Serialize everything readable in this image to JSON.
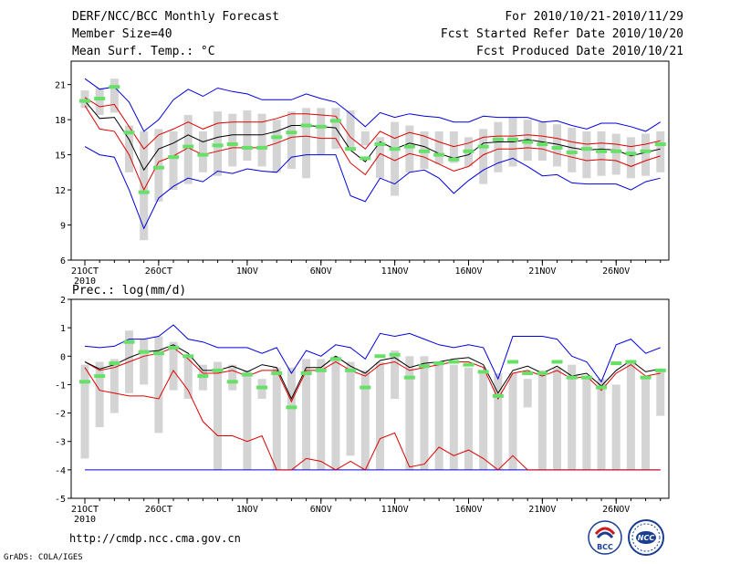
{
  "header": {
    "title": "DERF/NCC/BCC Monthly Forecast",
    "member_size": "Member Size=40",
    "variable": "Mean Surf. Temp.: °C",
    "period": "For 2010/10/21-2010/11/29",
    "started": "Fcst Started Refer Date 2010/10/20",
    "produced": "Fcst Produced Date 2010/10/21"
  },
  "footer": {
    "url": "http://cmdp.ncc.cma.gov.cn",
    "grads": "GrADS: COLA/IGES"
  },
  "logos": {
    "bcc": "BCC",
    "ncc": "NCC"
  },
  "colors": {
    "box": "#d4d4d4",
    "median": "#66e066",
    "mean": "#000000",
    "spread": "#e00000",
    "extreme": "#0000e0",
    "frame": "#000000"
  },
  "chart_data": [
    {
      "type": "box",
      "title": "Mean Surf. Temp.: °C",
      "xlabel": "",
      "ylabel": "",
      "ylim": [
        6,
        23
      ],
      "yticks": [
        6,
        9,
        12,
        15,
        18,
        21
      ],
      "n_days": 40,
      "xticks": [
        {
          "day": 1,
          "label": "21OCT",
          "sub": "2010"
        },
        {
          "day": 6,
          "label": "26OCT"
        },
        {
          "day": 12,
          "label": "1NOV"
        },
        {
          "day": 17,
          "label": "6NOV"
        },
        {
          "day": 22,
          "label": "11NOV"
        },
        {
          "day": 27,
          "label": "16NOV"
        },
        {
          "day": 32,
          "label": "21NOV"
        },
        {
          "day": 37,
          "label": "26NOV"
        }
      ],
      "box_low": [
        19.0,
        18.4,
        18.6,
        13.5,
        7.7,
        11.0,
        12.0,
        12.5,
        13.5,
        13.2,
        14.0,
        14.5,
        14.0,
        13.5,
        13.8,
        13.0,
        15.0,
        15.5,
        15.5,
        15.8,
        13.0,
        11.5,
        13.5,
        13.8,
        14.2,
        14.3,
        14.0,
        12.5,
        13.5,
        14.0,
        14.5,
        14.5,
        14.0,
        13.5,
        13.0,
        13.2,
        13.3,
        13.0,
        13.2,
        13.5
      ],
      "box_high": [
        20.5,
        20.7,
        21.5,
        17.5,
        17.0,
        17.2,
        17.0,
        18.4,
        17.0,
        18.7,
        18.5,
        18.8,
        18.5,
        18.0,
        18.7,
        19.0,
        19.0,
        19.0,
        18.8,
        17.0,
        16.5,
        17.8,
        17.5,
        17.0,
        17.0,
        17.0,
        16.5,
        17.2,
        17.8,
        18.2,
        18.0,
        17.8,
        17.6,
        17.3,
        17.0,
        17.0,
        16.8,
        16.5,
        16.8,
        17.0
      ],
      "median": [
        19.6,
        19.8,
        20.8,
        16.9,
        11.8,
        13.9,
        14.8,
        15.7,
        15.0,
        15.8,
        15.9,
        15.6,
        15.6,
        16.5,
        16.9,
        17.5,
        17.4,
        17.9,
        15.5,
        14.7,
        15.9,
        15.5,
        15.7,
        15.3,
        15.0,
        14.6,
        15.3,
        15.7,
        16.3,
        16.3,
        16.1,
        15.9,
        15.6,
        15.2,
        15.5,
        15.3,
        15.3,
        15.1,
        15.3,
        15.9
      ],
      "mean": [
        19.6,
        18.1,
        18.2,
        16.3,
        13.7,
        15.5,
        16.0,
        16.7,
        16.1,
        16.5,
        16.7,
        16.7,
        16.7,
        17.0,
        17.5,
        17.5,
        17.4,
        17.3,
        15.4,
        14.4,
        16.1,
        15.5,
        16.0,
        15.7,
        15.1,
        14.7,
        15.0,
        16.0,
        16.1,
        16.1,
        16.3,
        16.1,
        15.9,
        15.6,
        15.4,
        15.5,
        15.4,
        14.9,
        15.2,
        15.5
      ],
      "spread_high": [
        19.9,
        19.1,
        19.3,
        17.4,
        15.5,
        16.7,
        17.2,
        17.8,
        17.2,
        17.7,
        17.8,
        17.8,
        17.8,
        18.1,
        18.5,
        18.5,
        18.4,
        18.3,
        16.5,
        15.5,
        17.0,
        16.4,
        16.9,
        16.6,
        16.1,
        15.7,
        16.0,
        16.5,
        16.6,
        16.6,
        16.7,
        16.6,
        16.4,
        16.1,
        15.9,
        16.0,
        15.9,
        15.7,
        15.9,
        16.2
      ],
      "spread_low": [
        19.2,
        17.2,
        17.0,
        15.0,
        12.0,
        14.4,
        14.9,
        15.6,
        15.0,
        15.3,
        15.6,
        15.6,
        15.6,
        16.0,
        16.5,
        16.6,
        16.4,
        16.4,
        14.3,
        13.3,
        15.1,
        14.5,
        15.1,
        14.8,
        14.2,
        13.6,
        14.0,
        15.0,
        15.5,
        15.5,
        15.6,
        15.5,
        15.1,
        14.8,
        14.5,
        14.6,
        14.5,
        14.0,
        14.5,
        14.9
      ],
      "max": [
        21.5,
        20.6,
        20.8,
        19.5,
        17.0,
        18.0,
        19.7,
        20.6,
        20.0,
        20.7,
        20.4,
        20.2,
        19.7,
        19.7,
        19.7,
        20.2,
        19.8,
        19.5,
        18.5,
        17.4,
        18.6,
        18.2,
        18.5,
        18.3,
        18.2,
        17.8,
        17.8,
        18.3,
        18.2,
        18.2,
        18.2,
        17.8,
        17.9,
        17.5,
        17.2,
        17.7,
        17.7,
        17.4,
        17.0,
        17.8
      ],
      "min": [
        15.7,
        15.0,
        14.8,
        12.0,
        8.7,
        11.3,
        12.3,
        13.0,
        12.7,
        13.6,
        13.4,
        13.8,
        13.6,
        13.5,
        14.8,
        15.0,
        15.0,
        15.0,
        11.5,
        11.0,
        13.0,
        12.5,
        13.5,
        13.7,
        13.0,
        11.7,
        12.8,
        13.7,
        14.3,
        14.7,
        14.0,
        13.2,
        13.3,
        12.6,
        12.5,
        12.5,
        12.5,
        12.0,
        12.7,
        13.0
      ]
    },
    {
      "type": "box",
      "title": "Prec.: log(mm/d)",
      "xlabel": "",
      "ylabel": "",
      "ylim": [
        -5,
        2
      ],
      "yticks": [
        -5,
        -4,
        -3,
        -2,
        -1,
        0,
        1,
        2
      ],
      "n_days": 40,
      "xticks": [
        {
          "day": 1,
          "label": "21OCT",
          "sub": "2010"
        },
        {
          "day": 6,
          "label": "26OCT"
        },
        {
          "day": 12,
          "label": "1NOV"
        },
        {
          "day": 17,
          "label": "6NOV"
        },
        {
          "day": 22,
          "label": "11NOV"
        },
        {
          "day": 27,
          "label": "16NOV"
        },
        {
          "day": 32,
          "label": "21NOV"
        },
        {
          "day": 37,
          "label": "26NOV"
        }
      ],
      "box_low": [
        -3.6,
        -2.5,
        -2.0,
        -1.3,
        -1.0,
        -2.7,
        -1.2,
        -1.5,
        -1.2,
        -4.0,
        -1.2,
        -4.0,
        -1.5,
        -4.0,
        -4.0,
        -4.0,
        -4.0,
        -4.0,
        -3.5,
        -4.0,
        -4.0,
        -1.5,
        -4.0,
        -4.0,
        -4.0,
        -4.0,
        -4.0,
        -4.0,
        -4.0,
        -4.0,
        -1.8,
        -4.0,
        -4.0,
        -4.0,
        -4.0,
        -4.0,
        -4.0,
        -4.0,
        -4.0,
        -2.1
      ],
      "box_high": [
        -0.3,
        -0.2,
        -0.1,
        0.9,
        0.6,
        0.7,
        0.5,
        0.0,
        -0.3,
        -0.2,
        -0.3,
        -0.5,
        -0.8,
        -0.4,
        -0.4,
        -0.1,
        -0.1,
        0.0,
        -0.2,
        -0.5,
        -0.2,
        0.2,
        0.0,
        0.0,
        -0.2,
        -0.3,
        -0.4,
        -0.5,
        -0.6,
        -0.6,
        -0.8,
        -0.5,
        -0.4,
        -0.3,
        -0.8,
        -0.8,
        -1.0,
        -0.2,
        -0.7,
        -0.5
      ],
      "median": [
        -0.9,
        -0.7,
        -0.25,
        0.5,
        0.15,
        0.1,
        0.3,
        0.0,
        -0.7,
        -0.5,
        -0.9,
        -0.65,
        -1.1,
        -0.6,
        -1.8,
        -0.6,
        -0.5,
        -0.1,
        -0.5,
        -1.1,
        0.0,
        0.05,
        -0.75,
        -0.35,
        -0.25,
        -0.2,
        -0.3,
        -0.55,
        -1.4,
        -0.2,
        -0.6,
        -0.6,
        -0.2,
        -0.75,
        -0.75,
        -1.1,
        -0.25,
        -0.2,
        -0.75,
        -0.5
      ],
      "mean": [
        -0.2,
        -0.45,
        -0.3,
        -0.05,
        0.15,
        0.2,
        0.4,
        0.1,
        -0.5,
        -0.5,
        -0.35,
        -0.55,
        -0.3,
        -0.4,
        -1.5,
        -0.4,
        -0.4,
        0.0,
        -0.35,
        -0.6,
        -0.15,
        -0.05,
        -0.4,
        -0.25,
        -0.2,
        -0.1,
        -0.05,
        -0.3,
        -1.3,
        -0.5,
        -0.35,
        -0.6,
        -0.35,
        -0.7,
        -0.6,
        -1.05,
        -0.5,
        -0.15,
        -0.55,
        -0.45
      ],
      "spread_high": [
        -0.2,
        -0.5,
        -0.4,
        -0.2,
        0.0,
        0.1,
        0.3,
        -0.1,
        -0.6,
        -0.6,
        -0.5,
        -0.7,
        -0.5,
        -0.5,
        -1.6,
        -0.5,
        -0.5,
        -0.2,
        -0.5,
        -0.7,
        -0.3,
        -0.2,
        -0.5,
        -0.4,
        -0.3,
        -0.2,
        -0.2,
        -0.4,
        -1.5,
        -0.6,
        -0.5,
        -0.7,
        -0.5,
        -0.8,
        -0.7,
        -1.2,
        -0.6,
        -0.3,
        -0.7,
        -0.6
      ],
      "spread_low": [
        -0.4,
        -1.2,
        -1.3,
        -1.4,
        -1.4,
        -1.5,
        -0.5,
        -1.2,
        -2.3,
        -2.8,
        -2.8,
        -3.0,
        -2.8,
        -4.0,
        -4.0,
        -3.6,
        -3.7,
        -4.0,
        -3.7,
        -4.0,
        -2.9,
        -2.7,
        -3.9,
        -3.8,
        -3.2,
        -3.5,
        -3.3,
        -3.6,
        -4.0,
        -3.5,
        -4.0,
        -4.0,
        -4.0,
        -4.0,
        -4.0,
        -4.0,
        -4.0,
        -4.0,
        -4.0,
        -4.0
      ],
      "max": [
        0.35,
        0.3,
        0.35,
        0.6,
        0.6,
        0.7,
        1.1,
        0.6,
        0.5,
        0.3,
        0.3,
        0.3,
        0.1,
        0.3,
        -0.6,
        0.2,
        0.0,
        0.4,
        0.3,
        -0.1,
        0.8,
        0.7,
        0.8,
        0.6,
        0.4,
        0.3,
        0.4,
        0.3,
        -0.8,
        0.7,
        0.7,
        0.7,
        0.6,
        0.0,
        -0.2,
        -0.9,
        0.4,
        0.6,
        0.1,
        0.3
      ],
      "min": [
        -4.0,
        -4.0,
        -4.0,
        -4.0,
        -4.0,
        -4.0,
        -4.0,
        -4.0,
        -4.0,
        -4.0,
        -4.0,
        -4.0,
        -4.0,
        -4.0,
        -4.0,
        -4.0,
        -4.0,
        -4.0,
        -4.0,
        -4.0,
        -4.0,
        -4.0,
        -4.0,
        -4.0,
        -4.0,
        -4.0,
        -4.0,
        -4.0,
        -4.0,
        -4.0,
        -4.0,
        -4.0,
        -4.0,
        -4.0,
        -4.0,
        -4.0,
        -4.0,
        -4.0,
        -4.0,
        -4.0
      ]
    }
  ]
}
